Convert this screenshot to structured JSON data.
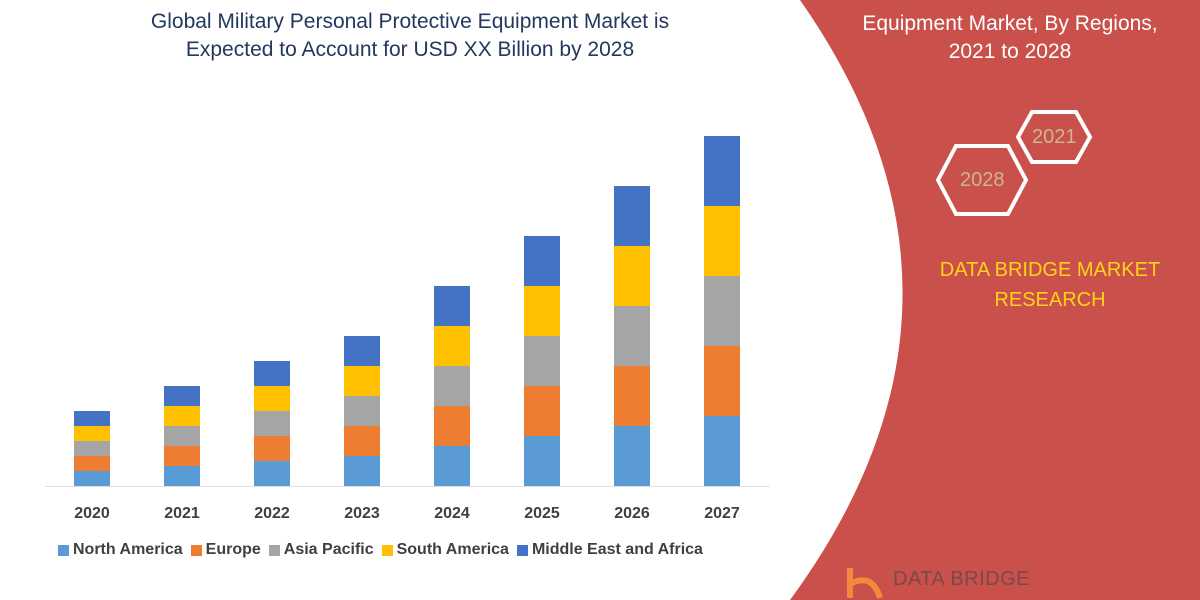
{
  "title_lines": [
    "Global Military Personal Protective Equipment Market is",
    "Expected to Account for USD XX Billion by 2028"
  ],
  "side_panel": {
    "title_lines": [
      "Equipment Market, By Regions,",
      "2021 to 2028"
    ],
    "hex_labels": [
      "2021",
      "2028"
    ],
    "brand_lines": [
      "DATA BRIDGE MARKET",
      "RESEARCH"
    ],
    "logo_text": "DATA BRIDGE",
    "panel_color": "#c9504b",
    "brand_color": "#ffd21a"
  },
  "chart_data": {
    "type": "bar",
    "stacked": true,
    "categories": [
      "2020",
      "2021",
      "2022",
      "2023",
      "2024",
      "2025",
      "2026",
      "2027"
    ],
    "series": [
      {
        "name": "North America",
        "color": "#5b9bd5",
        "values": [
          15,
          20,
          25,
          30,
          40,
          50,
          60,
          70
        ]
      },
      {
        "name": "Europe",
        "color": "#ed7d31",
        "values": [
          15,
          20,
          25,
          30,
          40,
          50,
          60,
          70
        ]
      },
      {
        "name": "Asia Pacific",
        "color": "#a5a5a5",
        "values": [
          15,
          20,
          25,
          30,
          40,
          50,
          60,
          70
        ]
      },
      {
        "name": "South America",
        "color": "#ffc000",
        "values": [
          15,
          20,
          25,
          30,
          40,
          50,
          60,
          70
        ]
      },
      {
        "name": "Middle East and Africa",
        "color": "#4472c4",
        "values": [
          15,
          20,
          25,
          30,
          40,
          50,
          60,
          70
        ]
      }
    ],
    "y_axis_shown": false,
    "grid": false,
    "legend_position": "bottom"
  }
}
